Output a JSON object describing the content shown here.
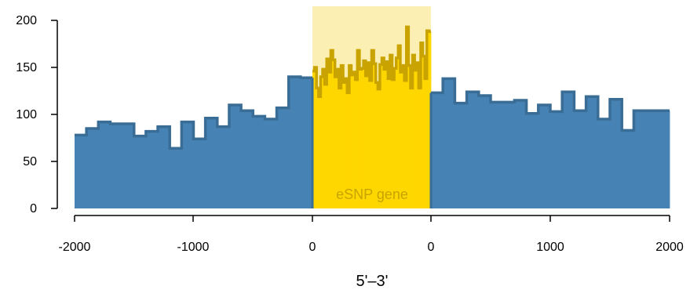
{
  "chart_data": {
    "type": "area",
    "title": "",
    "xlabel": "5'–3'",
    "ylabel": "",
    "ylim": [
      0,
      200
    ],
    "y_ticks": [
      "0",
      "50",
      "100",
      "150",
      "200"
    ],
    "x_tick_labels": [
      "-2000",
      "-1000",
      "0",
      "0",
      "1000",
      "2000"
    ],
    "grid": false,
    "region_label": "eSNP gene",
    "colors": {
      "flank_fill": "#4682b4",
      "flank_line": "#3a6d96",
      "gene_fill": "#ffd700",
      "gene_line": "#c9a400",
      "gene_band": "#fbefb3"
    },
    "upstream": {
      "x_range": [
        -2000,
        0
      ],
      "step": 100,
      "values": [
        78,
        85,
        92,
        90,
        90,
        77,
        82,
        87,
        64,
        92,
        74,
        96,
        87,
        110,
        104,
        98,
        95,
        107,
        140,
        139
      ]
    },
    "gene_body": {
      "x_range": [
        0,
        1
      ],
      "values": [
        146,
        150,
        128,
        119,
        140,
        148,
        132,
        159,
        145,
        168,
        158,
        140,
        148,
        128,
        152,
        134,
        138,
        123,
        152,
        142,
        145,
        137,
        168,
        148,
        149,
        157,
        141,
        155,
        136,
        168,
        154,
        134,
        127,
        153,
        160,
        148,
        156,
        138,
        163,
        137,
        149,
        160,
        173,
        145,
        152,
        136,
        193,
        152,
        128,
        163,
        147,
        155,
        128,
        176,
        162,
        138,
        189,
        188
      ]
    },
    "downstream": {
      "x_range": [
        0,
        2000
      ],
      "step": 100,
      "values": [
        123,
        138,
        112,
        124,
        120,
        113,
        113,
        115,
        101,
        110,
        103,
        124,
        104,
        119,
        95,
        116,
        83,
        104,
        104,
        104
      ]
    }
  }
}
